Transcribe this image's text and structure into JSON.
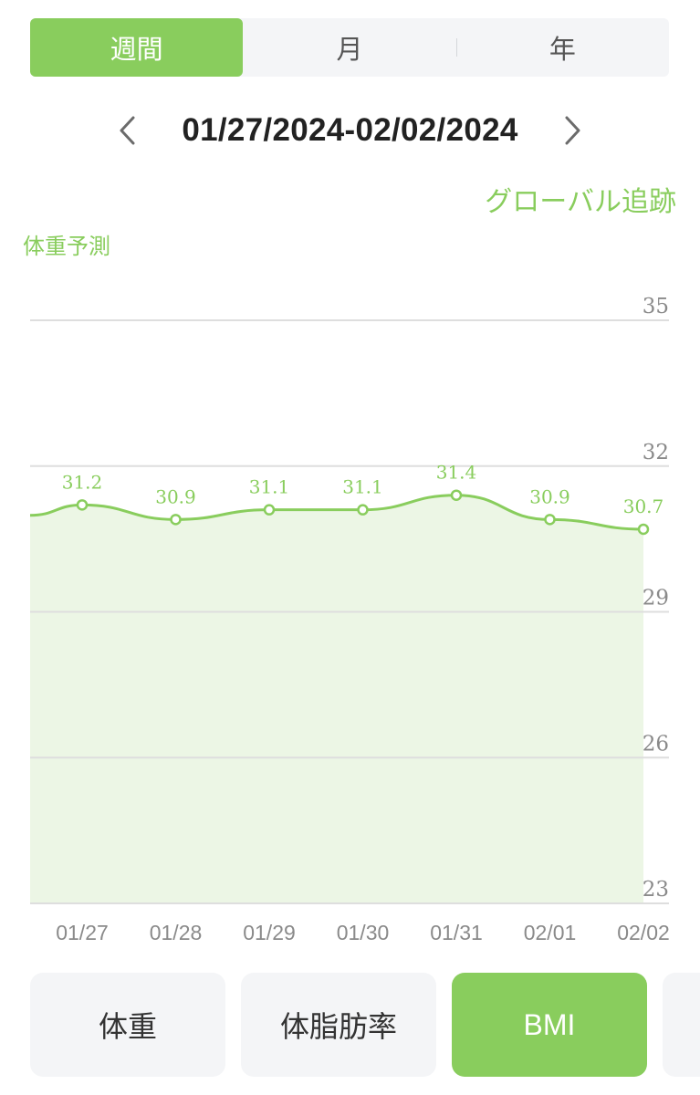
{
  "period_tabs": [
    {
      "label": "週間",
      "active": true
    },
    {
      "label": "月",
      "active": false
    },
    {
      "label": "年",
      "active": false
    }
  ],
  "date_range": "01/27/2024-02/02/2024",
  "global_link": "グローバル追跡",
  "predict_label": "体重予測",
  "metric_tabs": [
    {
      "label": "体重",
      "active": false
    },
    {
      "label": "体脂肪率",
      "active": false
    },
    {
      "label": "BMI",
      "active": true
    },
    {
      "label": "",
      "active": false
    }
  ],
  "colors": {
    "accent": "#89cd5d",
    "fill": "#ecf6e5",
    "grid": "#dedede",
    "text": "#222222"
  },
  "chart_data": {
    "type": "area",
    "categories": [
      "01/27",
      "01/28",
      "01/29",
      "01/30",
      "01/31",
      "02/01",
      "02/02"
    ],
    "values": [
      31.2,
      30.9,
      31.1,
      31.1,
      31.4,
      30.9,
      30.7
    ],
    "y_ticks": [
      35,
      32,
      29,
      26,
      23
    ],
    "ylim": [
      23,
      35
    ],
    "grid": true
  }
}
